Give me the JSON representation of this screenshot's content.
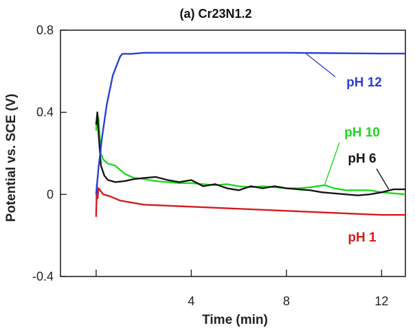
{
  "chart_data": {
    "type": "line",
    "title": "(a)  Cr23N1.2",
    "xlabel": "Time   (min)",
    "ylabel": "Potential vs. SCE  (V)",
    "xlim": [
      -1.5,
      13
    ],
    "ylim": [
      -0.4,
      0.8
    ],
    "x_ticks": [
      {
        "value": 4,
        "label": "4"
      },
      {
        "value": 8,
        "label": "8"
      },
      {
        "value": 12,
        "label": "12"
      }
    ],
    "y_ticks": [
      {
        "value": 0.8,
        "label": "0.8"
      },
      {
        "value": 0.4,
        "label": "0.4"
      },
      {
        "value": 0,
        "label": "0"
      },
      {
        "value": -0.4,
        "label": "-0.4"
      }
    ],
    "grid": false,
    "legend": "inline labels",
    "series": [
      {
        "name": "pH  12",
        "color": "#2b3fd6",
        "x": [
          0,
          0.1,
          0.25,
          0.45,
          0.7,
          1.0,
          1.1,
          1.5,
          2,
          3,
          4,
          6,
          8,
          10,
          12,
          13
        ],
        "y": [
          0.0,
          0.13,
          0.28,
          0.44,
          0.58,
          0.67,
          0.685,
          0.685,
          0.69,
          0.69,
          0.69,
          0.69,
          0.69,
          0.688,
          0.686,
          0.686
        ]
      },
      {
        "name": "pH 10",
        "color": "#1ed81e",
        "x": [
          0,
          0.05,
          0.1,
          0.2,
          0.3,
          0.5,
          0.8,
          1.2,
          1.6,
          2,
          2.5,
          3,
          3.5,
          4,
          4.5,
          5,
          5.5,
          6,
          6.5,
          7,
          7.5,
          8,
          8.5,
          9,
          9.3,
          9.6,
          10,
          10.5,
          11,
          11.5,
          12,
          12.5,
          13
        ],
        "y": [
          0.31,
          0.39,
          0.37,
          0.2,
          0.17,
          0.15,
          0.14,
          0.1,
          0.08,
          0.075,
          0.065,
          0.06,
          0.055,
          0.055,
          0.05,
          0.045,
          0.05,
          0.04,
          0.035,
          0.04,
          0.035,
          0.03,
          0.03,
          0.035,
          0.04,
          0.045,
          0.03,
          0.02,
          0.02,
          0.02,
          0.01,
          0.005,
          0.0
        ]
      },
      {
        "name": "pH 6",
        "color": "#151515",
        "x": [
          0,
          0.05,
          0.1,
          0.2,
          0.35,
          0.5,
          0.8,
          1.2,
          1.6,
          2,
          2.5,
          3,
          3.5,
          4,
          4.5,
          5,
          5.5,
          6,
          6.5,
          7,
          7.5,
          8,
          8.5,
          9,
          9.5,
          10,
          10.5,
          11,
          11.5,
          12,
          12.5,
          13
        ],
        "y": [
          0.34,
          0.4,
          0.3,
          0.14,
          0.09,
          0.07,
          0.06,
          0.065,
          0.075,
          0.08,
          0.085,
          0.07,
          0.06,
          0.07,
          0.04,
          0.05,
          0.03,
          0.02,
          0.04,
          0.03,
          0.04,
          0.03,
          0.025,
          0.02,
          0.01,
          0.005,
          0.0,
          -0.005,
          0.0,
          0.01,
          0.025,
          0.025
        ]
      },
      {
        "name": "pH 1",
        "color": "#d61a1a",
        "x": [
          0,
          0.03,
          0.06,
          0.1,
          0.3,
          0.6,
          1,
          1.5,
          2,
          3,
          4,
          5,
          6,
          7,
          8,
          9,
          10,
          11,
          12,
          13
        ],
        "y": [
          -0.11,
          0.05,
          -0.02,
          0.03,
          0.0,
          -0.01,
          -0.03,
          -0.04,
          -0.05,
          -0.055,
          -0.06,
          -0.065,
          -0.07,
          -0.075,
          -0.08,
          -0.085,
          -0.09,
          -0.095,
          -0.1,
          -0.1
        ]
      }
    ],
    "annotations": [
      {
        "series": "pH  12",
        "label": "pH  12",
        "color": "#2b3fd6"
      },
      {
        "series": "pH 10",
        "label": "pH 10",
        "color": "#1ed81e"
      },
      {
        "series": "pH 6",
        "label": "pH 6",
        "color": "#151515"
      },
      {
        "series": "pH 1",
        "label": "pH 1",
        "color": "#d61a1a"
      }
    ]
  }
}
